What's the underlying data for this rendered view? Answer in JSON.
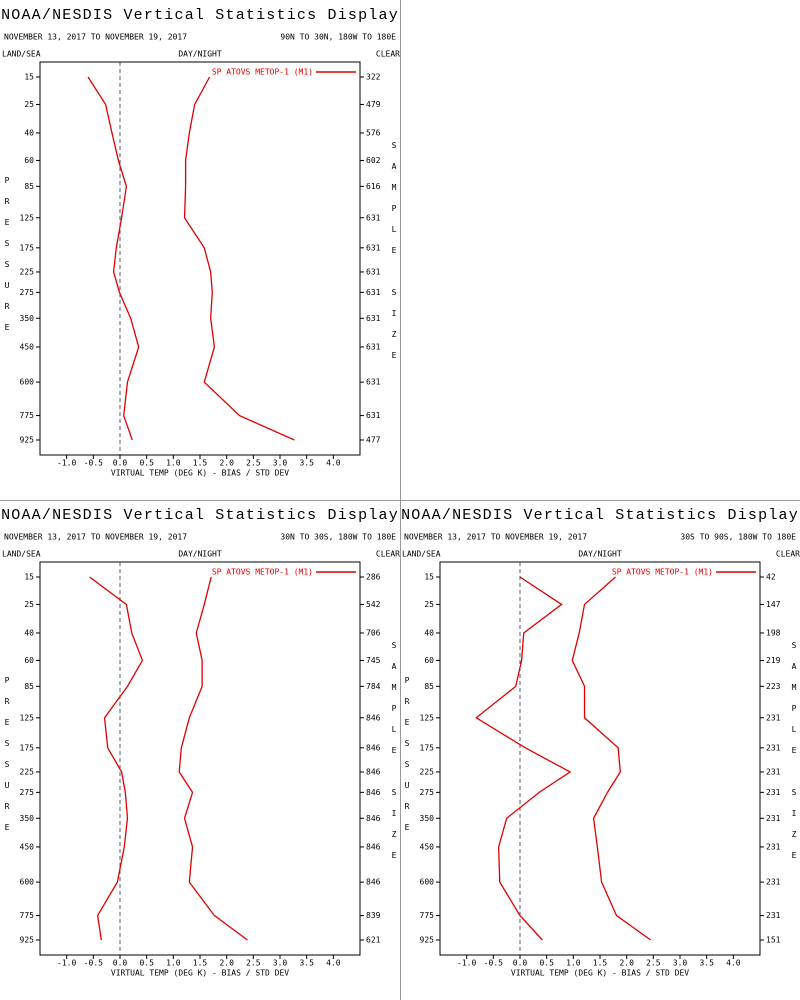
{
  "chart_data": [
    {
      "type": "line",
      "title": "NOAA/NESDIS Vertical Statistics Display",
      "subtitle": "NOVEMBER 13, 2017 TO NOVEMBER 19, 2017",
      "region": "90N TO 30N, 180W TO 180E",
      "land_sea": "LAND/SEA",
      "day_night": "DAY/NIGHT",
      "clear": "CLEAR",
      "ylabel": "PRESSURE",
      "y2label": "SAMPLE SIZE",
      "xlabel": "VIRTUAL TEMP (DEG K) - BIAS / STD DEV",
      "y": [
        15,
        25,
        40,
        60,
        85,
        125,
        175,
        225,
        275,
        350,
        450,
        600,
        775,
        925
      ],
      "sample_size": [
        322,
        479,
        576,
        602,
        616,
        631,
        631,
        631,
        631,
        631,
        631,
        631,
        631,
        477
      ],
      "series": [
        {
          "name": "SP ATOVS METOP-1 (M1)",
          "color": "#e00000",
          "bias": [
            -0.6,
            -0.27,
            -0.15,
            -0.03,
            0.12,
            0.03,
            -0.07,
            -0.12,
            -0.01,
            0.2,
            0.35,
            0.14,
            0.07,
            0.23
          ],
          "std_dev": [
            1.68,
            1.4,
            1.3,
            1.23,
            1.23,
            1.21,
            1.58,
            1.7,
            1.73,
            1.7,
            1.77,
            1.58,
            2.24,
            3.27
          ]
        }
      ],
      "xlim": [
        -1.5,
        4.5
      ],
      "xticks": [
        {
          "value": -1,
          "label": "-1.0"
        },
        {
          "value": -0.5,
          "label": "-0.5"
        },
        {
          "value": 0,
          "label": "0.0"
        },
        {
          "value": 0.5,
          "label": "0.5"
        },
        {
          "value": 1,
          "label": "1.0"
        },
        {
          "value": 1.5,
          "label": "1.5"
        },
        {
          "value": 2,
          "label": "2.0"
        },
        {
          "value": 2.5,
          "label": "2.5"
        },
        {
          "value": 3,
          "label": "3.0"
        },
        {
          "value": 3.5,
          "label": "3.5"
        },
        {
          "value": 4,
          "label": "4.0"
        }
      ]
    },
    {
      "type": "line",
      "title": "NOAA/NESDIS Vertical Statistics Display",
      "subtitle": "NOVEMBER 13, 2017 TO NOVEMBER 19, 2017",
      "region": "30N TO 30S, 180W TO 180E",
      "land_sea": "LAND/SEA",
      "day_night": "DAY/NIGHT",
      "clear": "CLEAR",
      "ylabel": "PRESSURE",
      "y2label": "SAMPLE SIZE",
      "xlabel": "VIRTUAL TEMP (DEG K) - BIAS / STD DEV",
      "y": [
        15,
        25,
        40,
        60,
        85,
        125,
        175,
        225,
        275,
        350,
        450,
        600,
        775,
        925
      ],
      "sample_size": [
        286,
        542,
        706,
        745,
        784,
        846,
        846,
        846,
        846,
        846,
        846,
        846,
        839,
        621
      ],
      "series": [
        {
          "name": "SP ATOVS METOP-1 (M1)",
          "color": "#e00000",
          "bias": [
            -0.57,
            0.12,
            0.22,
            0.42,
            0.14,
            -0.29,
            -0.23,
            0.03,
            0.1,
            0.14,
            0.08,
            -0.05,
            -0.42,
            -0.35
          ],
          "std_dev": [
            1.71,
            1.58,
            1.43,
            1.54,
            1.54,
            1.3,
            1.15,
            1.11,
            1.36,
            1.21,
            1.36,
            1.3,
            1.77,
            2.39
          ]
        }
      ],
      "xlim": [
        -1.5,
        4.5
      ],
      "xticks": [
        {
          "value": -1,
          "label": "-1.0"
        },
        {
          "value": -0.5,
          "label": "-0.5"
        },
        {
          "value": 0,
          "label": "0.0"
        },
        {
          "value": 0.5,
          "label": "0.5"
        },
        {
          "value": 1,
          "label": "1.0"
        },
        {
          "value": 1.5,
          "label": "1.5"
        },
        {
          "value": 2,
          "label": "2.0"
        },
        {
          "value": 2.5,
          "label": "2.5"
        },
        {
          "value": 3,
          "label": "3.0"
        },
        {
          "value": 3.5,
          "label": "3.5"
        },
        {
          "value": 4,
          "label": "4.0"
        }
      ]
    },
    {
      "type": "line",
      "title": "NOAA/NESDIS Vertical Statistics Display",
      "subtitle": "NOVEMBER 13, 2017 TO NOVEMBER 19, 2017",
      "region": "30S TO 90S, 180W TO 180E",
      "land_sea": "LAND/SEA",
      "day_night": "DAY/NIGHT",
      "clear": "CLEAR",
      "ylabel": "PRESSURE",
      "y2label": "SAMPLE SIZE",
      "xlabel": "VIRTUAL TEMP (DEG K) - BIAS / STD DEV",
      "y": [
        15,
        25,
        40,
        60,
        85,
        125,
        175,
        225,
        275,
        350,
        450,
        600,
        775,
        925
      ],
      "sample_size": [
        42,
        147,
        198,
        219,
        223,
        231,
        231,
        231,
        231,
        231,
        231,
        231,
        231,
        151
      ],
      "series": [
        {
          "name": "SP ATOVS METOP-1 (M1)",
          "color": "#e00000",
          "bias": [
            0,
            0.78,
            0.07,
            0.03,
            -0.08,
            -0.82,
            0.1,
            0.94,
            0.36,
            -0.25,
            -0.4,
            -0.38,
            0,
            0.42
          ],
          "std_dev": [
            1.79,
            1.21,
            1.11,
            0.98,
            1.21,
            1.21,
            1.84,
            1.88,
            1.64,
            1.38,
            1.45,
            1.53,
            1.81,
            2.45
          ]
        }
      ],
      "xlim": [
        -1.5,
        4.5
      ],
      "xticks": [
        {
          "value": -1,
          "label": "-1.0"
        },
        {
          "value": -0.5,
          "label": "-0.5"
        },
        {
          "value": 0,
          "label": "0.0"
        },
        {
          "value": 0.5,
          "label": "0.5"
        },
        {
          "value": 1,
          "label": "1.0"
        },
        {
          "value": 1.5,
          "label": "1.5"
        },
        {
          "value": 2,
          "label": "2.0"
        },
        {
          "value": 2.5,
          "label": "2.5"
        },
        {
          "value": 3,
          "label": "3.0"
        },
        {
          "value": 3.5,
          "label": "3.5"
        },
        {
          "value": 4,
          "label": "4.0"
        }
      ]
    }
  ]
}
